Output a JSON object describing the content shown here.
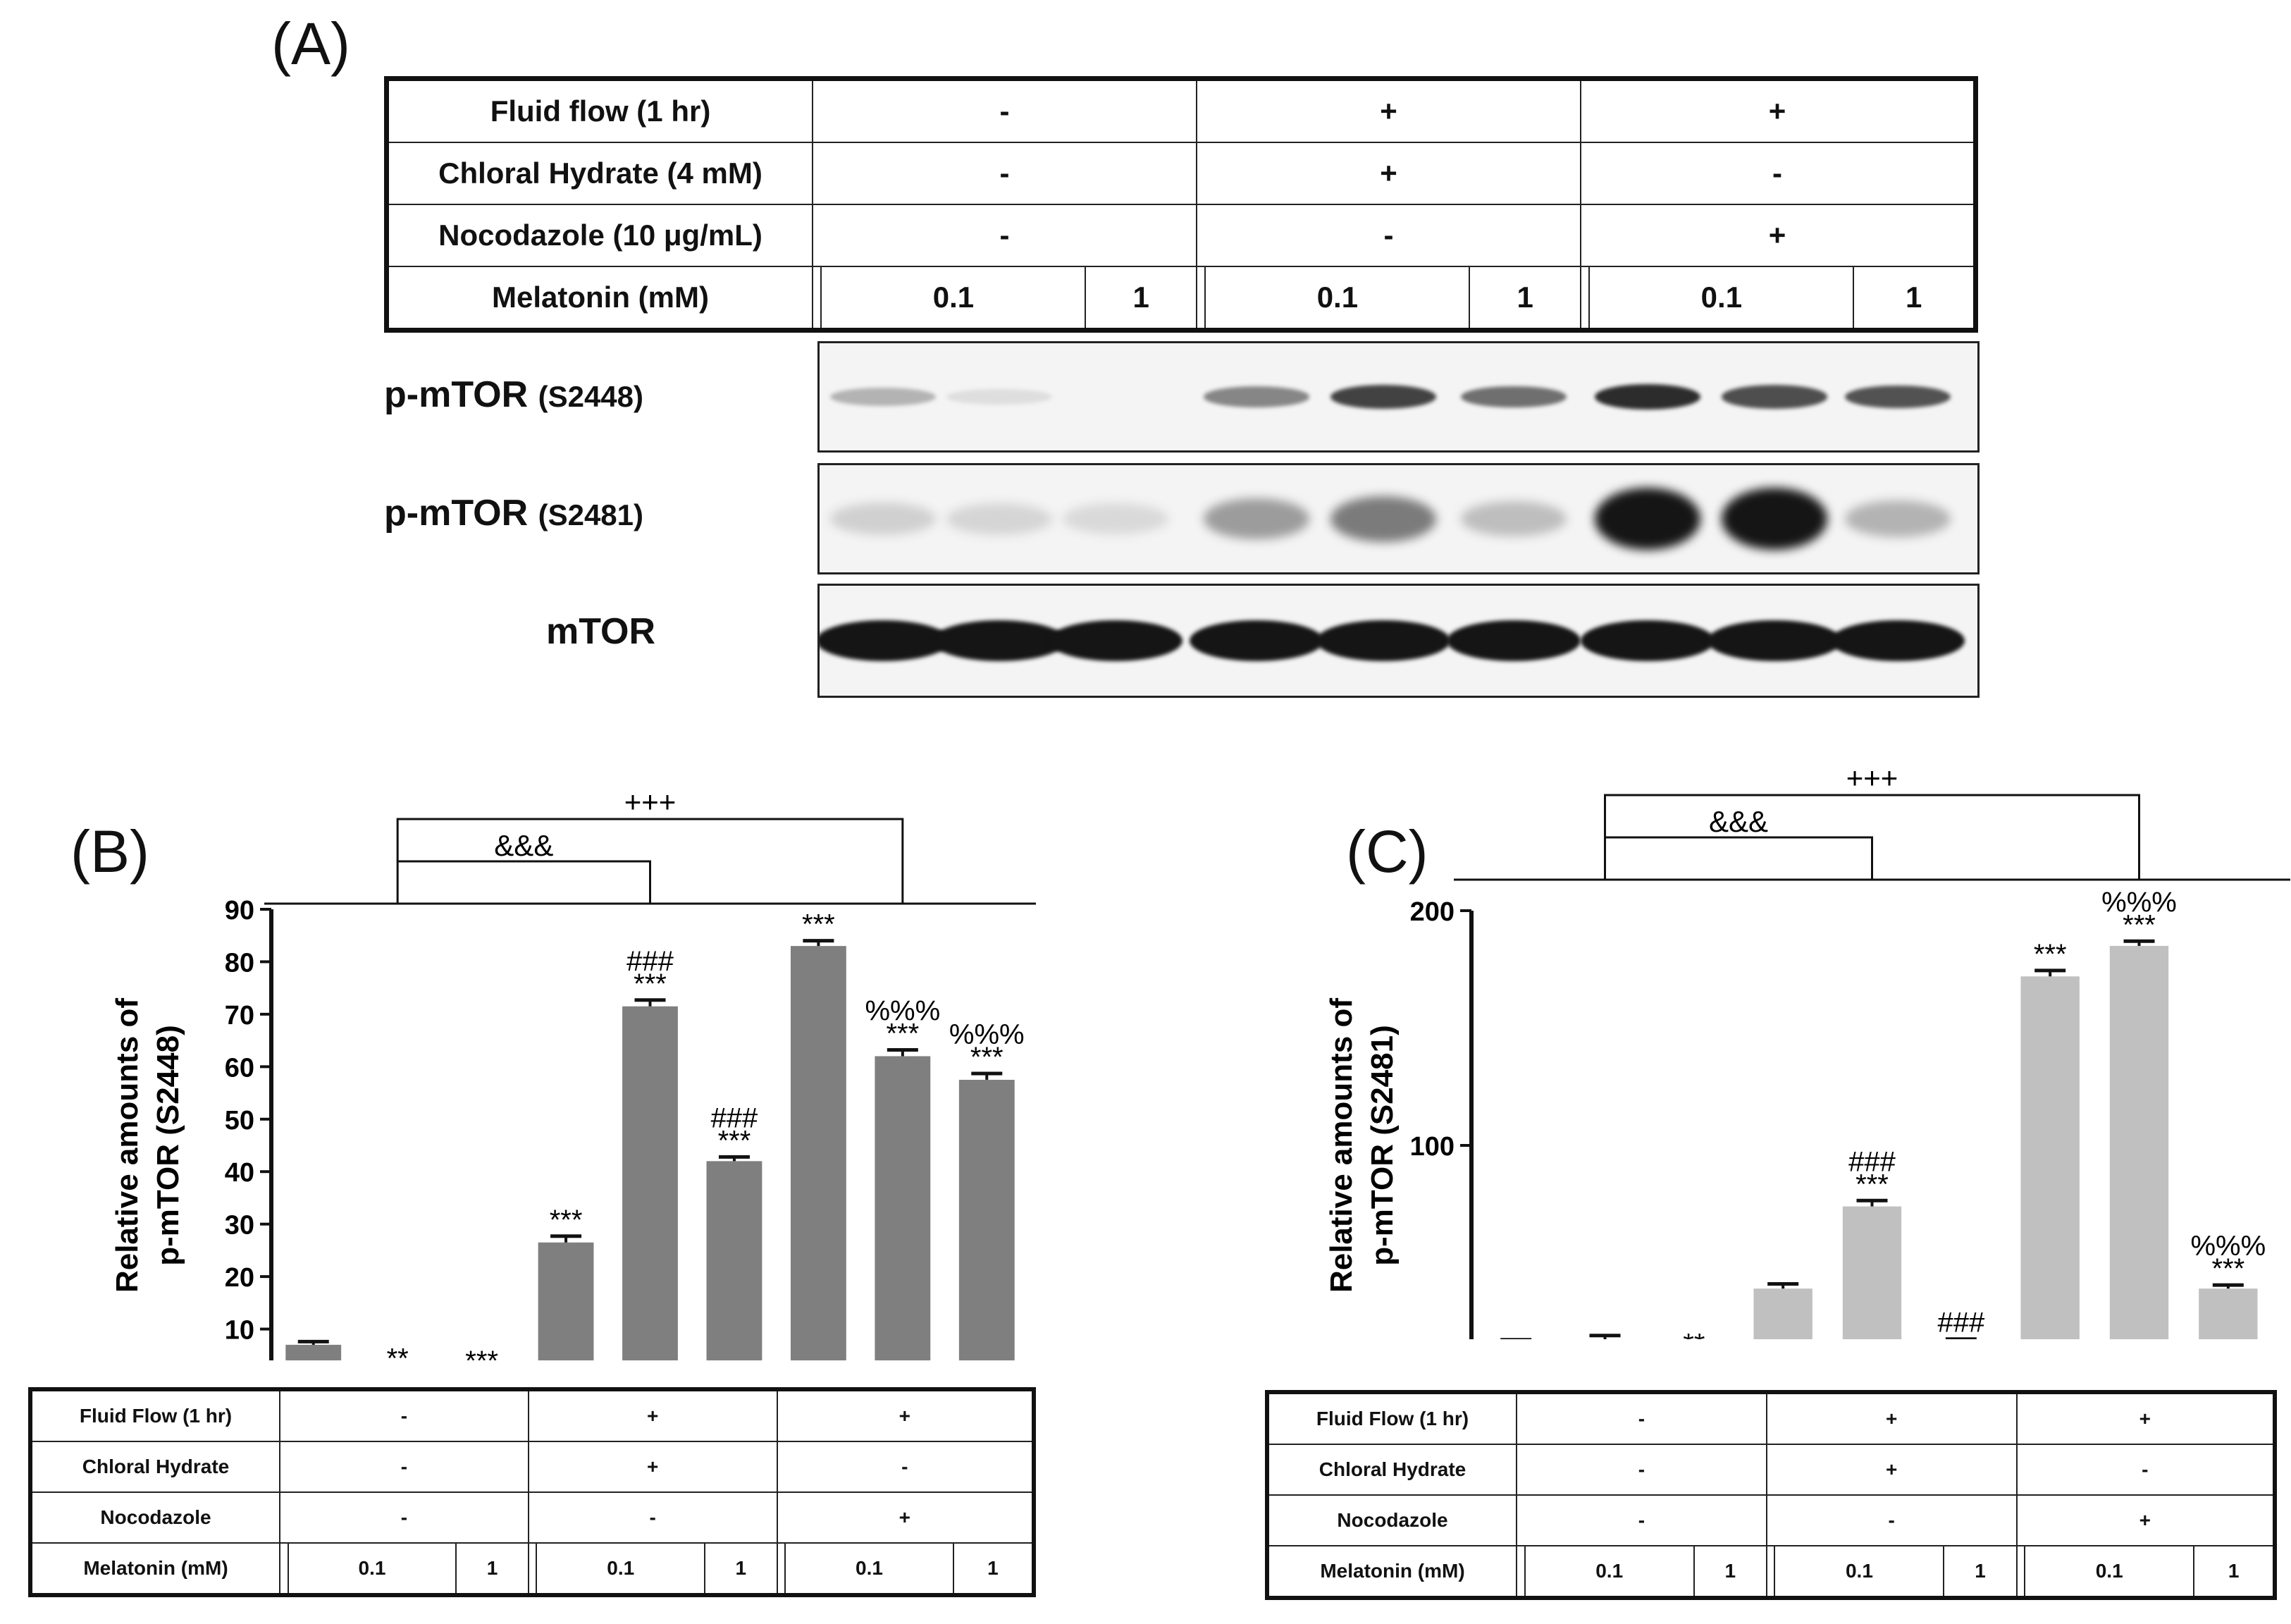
{
  "panel_a": {
    "letter": "(A)",
    "table": {
      "rows": [
        {
          "label": "Fluid flow (1 hr)",
          "groups": [
            "-",
            "+",
            "+"
          ]
        },
        {
          "label": "Chloral Hydrate  (4 mM)",
          "groups": [
            "-",
            "+",
            "-"
          ]
        },
        {
          "label": "Nocodazole (10 μg/mL)",
          "groups": [
            "-",
            "-",
            "+"
          ]
        }
      ],
      "melatonin_label": "Melatonin (mM)",
      "melatonin_values": [
        "",
        "0.1",
        "1",
        "",
        "0.1",
        "1",
        "",
        "0.1",
        "1"
      ]
    },
    "blots": [
      {
        "name": "p-mTOR",
        "site": "(S2448)",
        "intensity": [
          0.25,
          0.06,
          0.0,
          0.45,
          0.75,
          0.55,
          0.85,
          0.7,
          0.68
        ]
      },
      {
        "name": "p-mTOR",
        "site": "(S2481)",
        "intensity": [
          0.12,
          0.1,
          0.08,
          0.35,
          0.5,
          0.2,
          0.95,
          0.95,
          0.25
        ]
      },
      {
        "name": "mTOR",
        "site": "",
        "intensity": [
          0.95,
          0.95,
          0.95,
          0.95,
          0.95,
          0.95,
          0.95,
          0.95,
          0.95
        ]
      }
    ]
  },
  "chart_data": [
    {
      "type": "bar",
      "panel": "(B)",
      "ylabel_line1": "Relative amounts of",
      "ylabel_line2": "p-mTOR (S2448)",
      "ylim": [
        0,
        90
      ],
      "yticks": [
        "0",
        "10",
        "20",
        "30",
        "40",
        "50",
        "60",
        "70",
        "80",
        "90"
      ],
      "values": [
        7,
        1,
        0.5,
        26.5,
        71.5,
        42,
        83,
        62,
        57.5
      ],
      "errors": [
        0.6,
        0.3,
        0.3,
        1.2,
        1.2,
        0.8,
        1.0,
        1.2,
        1.2
      ],
      "annotations": [
        [
          ""
        ],
        [
          "**"
        ],
        [
          "***"
        ],
        [
          "***"
        ],
        [
          "###",
          "***"
        ],
        [
          "###",
          "***"
        ],
        [
          "***"
        ],
        [
          "%%%",
          "***"
        ],
        [
          "%%%",
          "***"
        ]
      ],
      "brackets": [
        "&&&",
        "+++"
      ],
      "bar_color": "#7f7f7f",
      "table": {
        "rows": [
          {
            "label": "Fluid Flow (1 hr)",
            "groups": [
              "-",
              "+",
              "+"
            ]
          },
          {
            "label": "Chloral Hydrate",
            "groups": [
              "-",
              "+",
              "-"
            ]
          },
          {
            "label": "Nocodazole",
            "groups": [
              "-",
              "-",
              "+"
            ]
          }
        ],
        "melatonin_label": "Melatonin (mM)",
        "melatonin_values": [
          "",
          "0.1",
          "1",
          "",
          "0.1",
          "1",
          "",
          "0.1",
          "1"
        ]
      }
    },
    {
      "type": "bar",
      "panel": "(C)",
      "ylabel_line1": "Relative amounts of",
      "ylabel_line2": "p-mTOR (S2481)",
      "ylim": [
        0,
        200
      ],
      "yticks": [
        "0",
        "100",
        "200"
      ],
      "values": [
        16,
        17,
        7,
        39,
        74,
        16,
        172,
        185,
        39
      ],
      "errors": [
        1.2,
        2,
        1.5,
        2,
        2.5,
        1.5,
        2.5,
        2,
        1.5
      ],
      "annotations": [
        [
          ""
        ],
        [
          ""
        ],
        [
          "**"
        ],
        [
          ""
        ],
        [
          "###",
          "***"
        ],
        [
          "###"
        ],
        [
          "***"
        ],
        [
          "%%%",
          "***"
        ],
        [
          "%%%",
          "***"
        ]
      ],
      "brackets": [
        "&&&",
        "+++"
      ],
      "bar_color": "#c0c0c0",
      "table": {
        "rows": [
          {
            "label": "Fluid Flow (1 hr)",
            "groups": [
              "-",
              "+",
              "+"
            ]
          },
          {
            "label": "Chloral Hydrate",
            "groups": [
              "-",
              "+",
              "-"
            ]
          },
          {
            "label": "Nocodazole",
            "groups": [
              "-",
              "-",
              "+"
            ]
          }
        ],
        "melatonin_label": "Melatonin (mM)",
        "melatonin_values": [
          "",
          "0.1",
          "1",
          "",
          "0.1",
          "1",
          "",
          "0.1",
          "1"
        ]
      }
    }
  ]
}
